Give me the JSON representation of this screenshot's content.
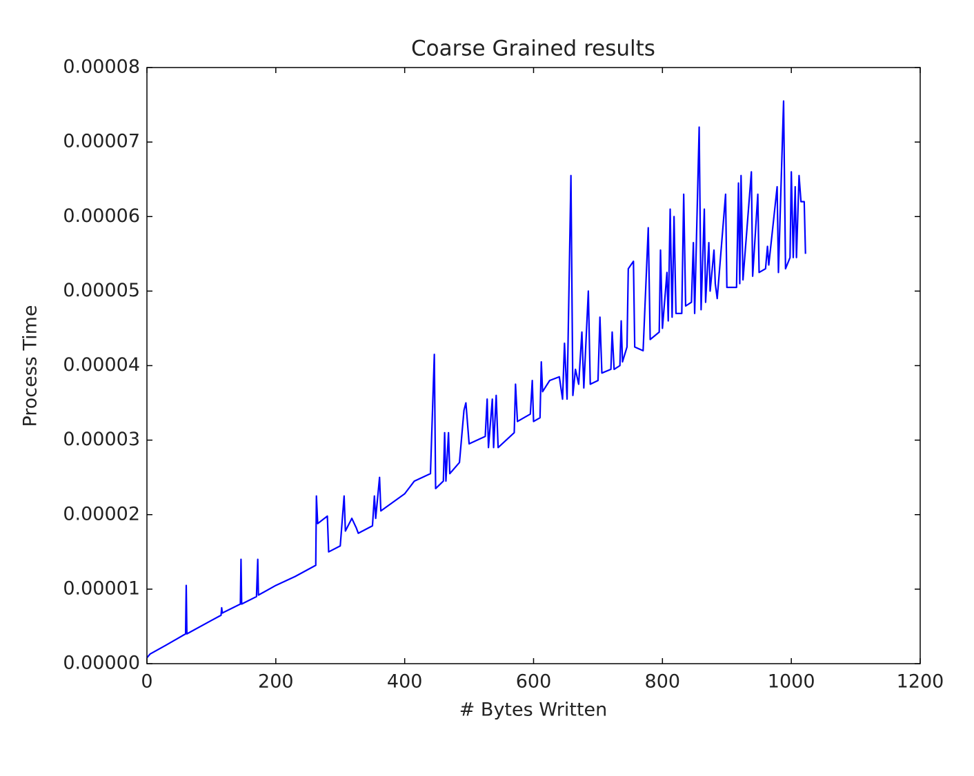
{
  "chart_data": {
    "type": "line",
    "title": "Coarse Grained results",
    "x_label": "# Bytes Written",
    "y_label": "Process Time",
    "color": "#0000ff",
    "xlim": [
      0,
      1200
    ],
    "xticks": [
      0,
      200,
      400,
      600,
      800,
      1000,
      1200
    ],
    "ylim": [
      0,
      8e-05
    ],
    "yticks": [
      {
        "value": 0,
        "label": "0.00000"
      },
      {
        "value": 1e-05,
        "label": "0.00001"
      },
      {
        "value": 2e-05,
        "label": "0.00002"
      },
      {
        "value": 3e-05,
        "label": "0.00003"
      },
      {
        "value": 4e-05,
        "label": "0.00004"
      },
      {
        "value": 5e-05,
        "label": "0.00005"
      },
      {
        "value": 6e-05,
        "label": "0.00006"
      },
      {
        "value": 7e-05,
        "label": "0.00007"
      },
      {
        "value": 8e-05,
        "label": "0.00008"
      }
    ],
    "x": [
      0,
      5,
      30,
      60,
      61,
      62,
      100,
      115,
      116,
      117,
      145,
      146,
      147,
      170,
      172,
      173,
      200,
      230,
      262,
      263,
      265,
      280,
      282,
      300,
      306,
      308,
      318,
      325,
      328,
      350,
      353,
      355,
      361,
      363,
      400,
      415,
      440,
      446,
      448,
      460,
      462,
      464,
      468,
      470,
      485,
      492,
      495,
      500,
      525,
      528,
      530,
      536,
      538,
      542,
      545,
      570,
      572,
      575,
      595,
      598,
      600,
      610,
      612,
      614,
      625,
      640,
      645,
      648,
      652,
      658,
      661,
      665,
      670,
      675,
      678,
      685,
      688,
      700,
      703,
      706,
      720,
      722,
      725,
      734,
      736,
      738,
      745,
      747,
      755,
      757,
      770,
      778,
      781,
      795,
      797,
      800,
      807,
      809,
      812,
      815,
      818,
      821,
      830,
      833,
      836,
      845,
      848,
      850,
      857,
      860,
      865,
      867,
      872,
      874,
      880,
      882,
      885,
      898,
      900,
      915,
      918,
      920,
      922,
      925,
      938,
      940,
      948,
      950,
      960,
      963,
      965,
      978,
      980,
      988,
      991,
      998,
      1000,
      1003,
      1006,
      1008,
      1012,
      1015,
      1020,
      1022
    ],
    "values": [
      8e-07,
      1.3e-06,
      2.5e-06,
      4e-06,
      1.05e-05,
      4e-06,
      5.8e-06,
      6.5e-06,
      7.5e-06,
      6.8e-06,
      8e-06,
      1.4e-05,
      8e-06,
      9e-06,
      1.4e-05,
      9.2e-06,
      1.05e-05,
      1.17e-05,
      1.32e-05,
      2.25e-05,
      1.88e-05,
      1.98e-05,
      1.5e-05,
      1.58e-05,
      2.25e-05,
      1.78e-05,
      1.95e-05,
      1.82e-05,
      1.75e-05,
      1.85e-05,
      2.25e-05,
      1.95e-05,
      2.5e-05,
      2.05e-05,
      2.28e-05,
      2.45e-05,
      2.55e-05,
      4.15e-05,
      2.35e-05,
      2.45e-05,
      3.1e-05,
      2.45e-05,
      3.1e-05,
      2.55e-05,
      2.7e-05,
      3.4e-05,
      3.5e-05,
      2.95e-05,
      3.05e-05,
      3.55e-05,
      2.9e-05,
      3.55e-05,
      2.9e-05,
      3.6e-05,
      2.9e-05,
      3.1e-05,
      3.75e-05,
      3.25e-05,
      3.35e-05,
      3.8e-05,
      3.25e-05,
      3.3e-05,
      4.05e-05,
      3.65e-05,
      3.8e-05,
      3.85e-05,
      3.55e-05,
      4.3e-05,
      3.55e-05,
      6.55e-05,
      3.6e-05,
      3.95e-05,
      3.75e-05,
      4.45e-05,
      3.7e-05,
      5e-05,
      3.75e-05,
      3.8e-05,
      4.65e-05,
      3.9e-05,
      3.95e-05,
      4.45e-05,
      3.95e-05,
      4e-05,
      4.6e-05,
      4.05e-05,
      4.25e-05,
      5.3e-05,
      5.4e-05,
      4.25e-05,
      4.2e-05,
      5.85e-05,
      4.35e-05,
      4.45e-05,
      5.55e-05,
      4.5e-05,
      5.25e-05,
      4.6e-05,
      6.1e-05,
      4.65e-05,
      6e-05,
      4.7e-05,
      4.7e-05,
      6.3e-05,
      4.8e-05,
      4.85e-05,
      5.65e-05,
      4.7e-05,
      7.2e-05,
      4.75e-05,
      6.1e-05,
      4.85e-05,
      5.65e-05,
      5e-05,
      5.55e-05,
      5.1e-05,
      4.9e-05,
      6.3e-05,
      5.05e-05,
      5.05e-05,
      6.45e-05,
      5.1e-05,
      6.55e-05,
      5.15e-05,
      6.6e-05,
      5.2e-05,
      6.3e-05,
      5.25e-05,
      5.3e-05,
      5.6e-05,
      5.35e-05,
      6.4e-05,
      5.25e-05,
      7.55e-05,
      5.3e-05,
      5.45e-05,
      6.6e-05,
      5.45e-05,
      6.4e-05,
      5.45e-05,
      6.55e-05,
      6.2e-05,
      6.2e-05,
      5.5e-05
    ]
  }
}
